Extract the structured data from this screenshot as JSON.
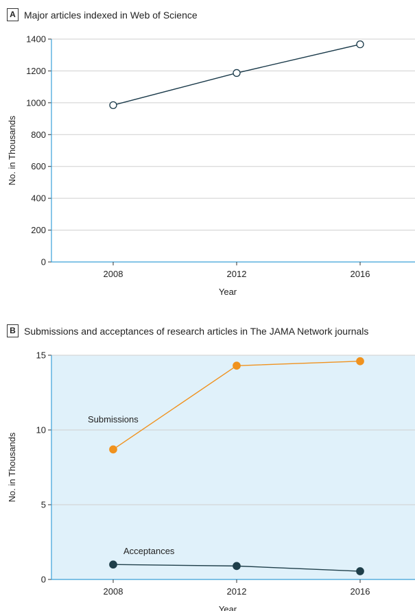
{
  "chart_data": [
    {
      "panel": "A",
      "type": "line",
      "title": "Major articles indexed in Web of Science",
      "xlabel": "Year",
      "ylabel": "No. in Thousands",
      "x": [
        "2008",
        "2012",
        "2016"
      ],
      "series": [
        {
          "name": "",
          "values": [
            985,
            1187,
            1367
          ],
          "color": "#1a3a4a",
          "marker": "open-circle"
        }
      ],
      "ylim": [
        0,
        1400
      ],
      "yticks": [
        0,
        200,
        400,
        600,
        800,
        1000,
        1200,
        1400
      ],
      "grid": true,
      "axis_color": "#3aa0d8"
    },
    {
      "panel": "B",
      "type": "line",
      "title": "Submissions and acceptances of research articles in The JAMA Network journals",
      "xlabel": "Year",
      "ylabel": "No. in Thousands",
      "x": [
        "2008",
        "2012",
        "2016"
      ],
      "series": [
        {
          "name": "Submissions",
          "values": [
            8.7,
            14.3,
            14.6
          ],
          "color": "#f0921e"
        },
        {
          "name": "Acceptances",
          "values": [
            1.0,
            0.9,
            0.55
          ],
          "color": "#1f3f4a"
        }
      ],
      "ylim": [
        0,
        15
      ],
      "yticks": [
        0,
        5,
        10,
        15
      ],
      "grid": true,
      "background": "#e0f1fa",
      "axis_color": "#3aa0d8"
    }
  ]
}
